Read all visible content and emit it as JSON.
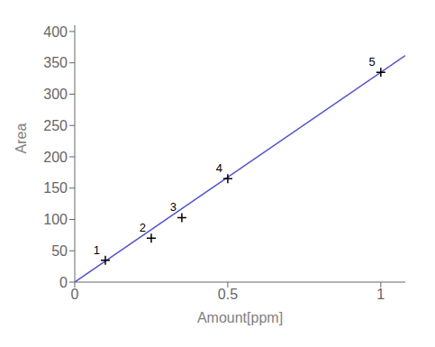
{
  "chart_data": {
    "type": "scatter",
    "xlabel": "Amount[ppm]",
    "ylabel": "Area",
    "xlim": [
      0,
      1.08
    ],
    "ylim": [
      0,
      410
    ],
    "xticks": [
      0,
      0.5,
      1
    ],
    "yticks": [
      0,
      50,
      100,
      150,
      200,
      250,
      300,
      350,
      400
    ],
    "series": [
      {
        "type": "line",
        "x": [
          0,
          1.08
        ],
        "values": [
          0,
          361.8
        ],
        "color": "#5555cc",
        "line_style": "solid"
      },
      {
        "type": "scatter",
        "x": [
          0.1,
          0.25,
          0.35,
          0.5,
          1.0
        ],
        "values": [
          35,
          70,
          103,
          165,
          335
        ],
        "point_labels": [
          "1",
          "2",
          "3",
          "4",
          "5"
        ],
        "color": "black",
        "marker": "plus"
      }
    ]
  }
}
